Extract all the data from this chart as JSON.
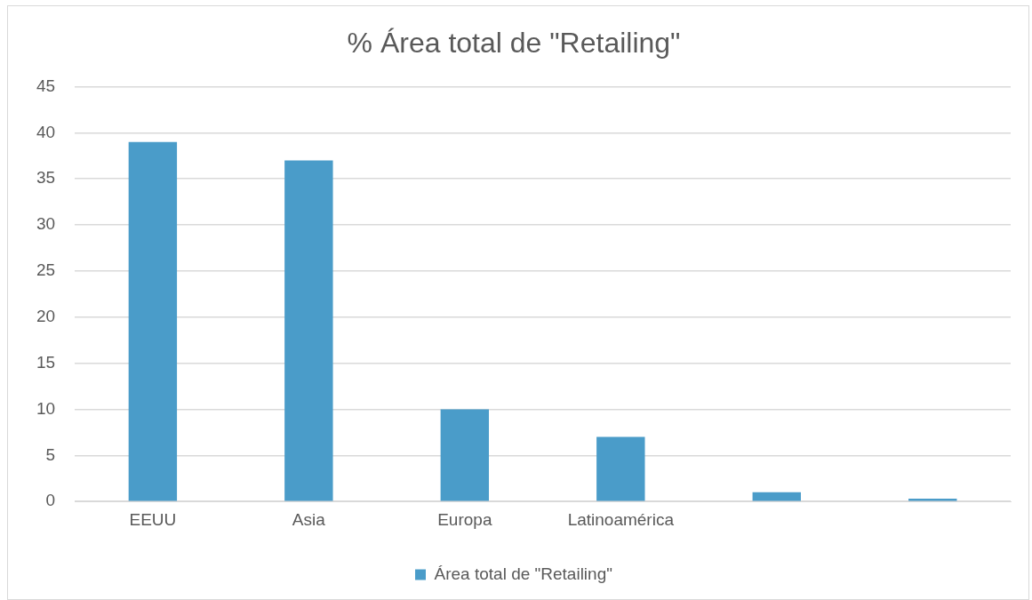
{
  "chart_data": {
    "type": "bar",
    "title": "% Área total de \"Retailing\"",
    "categories": [
      "EEUU",
      "Asia",
      "Europa",
      "Latinoamérica",
      null,
      null
    ],
    "series": [
      {
        "name": "Área total de \"Retailing\"",
        "color": "#4a9cc9",
        "values": [
          39,
          37,
          10,
          7,
          1,
          0.3
        ]
      }
    ],
    "ylim": [
      0,
      45
    ],
    "yticks": [
      0,
      5,
      10,
      15,
      20,
      25,
      30,
      35,
      40,
      45
    ],
    "grid": "y",
    "legend": "bottom"
  }
}
